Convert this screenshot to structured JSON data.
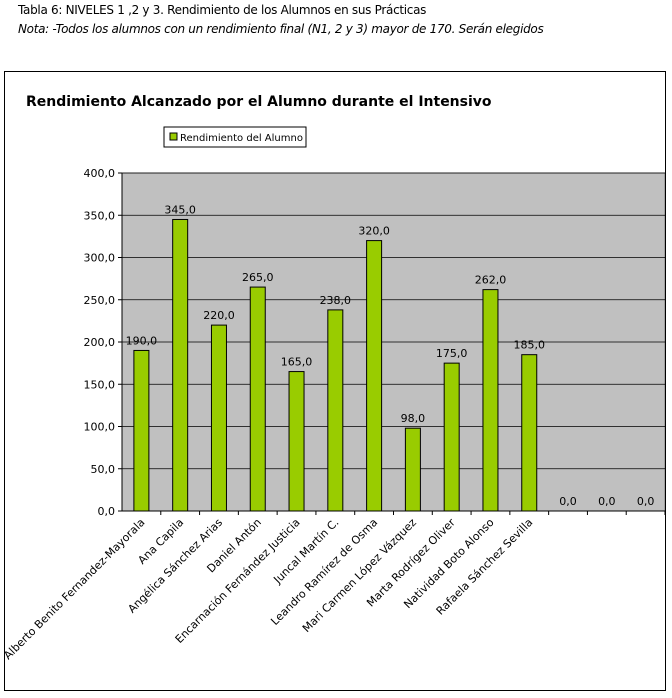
{
  "caption": {
    "table_title": "Tabla 6: NIVELES 1 ,2 y 3. Rendimiento de los Alumnos en sus Prácticas",
    "note": "Nota: -Todos los alumnos con un rendimiento final (N1, 2 y 3) mayor de 170. Serán elegidos"
  },
  "colors": {
    "bar": "#99cc00",
    "plot_bg": "#c0c0c0"
  },
  "chart_data": {
    "type": "bar",
    "title": "Rendimiento Alcanzado por el Alumno durante el Intensivo",
    "legend": "Rendimiento del Alumno",
    "legend_position": "top-left",
    "categories": [
      "Alberto Benito Fernandez-Mayorala",
      "Ana Capila",
      "Angélica Sánchez Arias",
      "Daniel Antón",
      "Encarnación Fernández Justicia",
      "Juncal Martín C.",
      "Leandro Ramírez de Osma",
      "Mari Carmen López Vázquez",
      "Marta Rodrígez Oliver",
      "Natividad Boto Alonso",
      "Rafaela Sánchez Sevilla",
      "",
      "",
      ""
    ],
    "values": [
      190,
      345,
      220,
      265,
      165,
      238,
      320,
      98,
      175,
      262,
      185,
      0,
      0,
      0
    ],
    "data_labels": [
      "190,0",
      "345,0",
      "220,0",
      "265,0",
      "165,0",
      "238,0",
      "320,0",
      "98,0",
      "175,0",
      "262,0",
      "185,0",
      "0,0",
      "0,0",
      "0,0"
    ],
    "yticks": [
      "0,0",
      "50,0",
      "100,0",
      "150,0",
      "200,0",
      "250,0",
      "300,0",
      "350,0",
      "400,0"
    ],
    "ylim": [
      0,
      400
    ],
    "grid": true
  }
}
